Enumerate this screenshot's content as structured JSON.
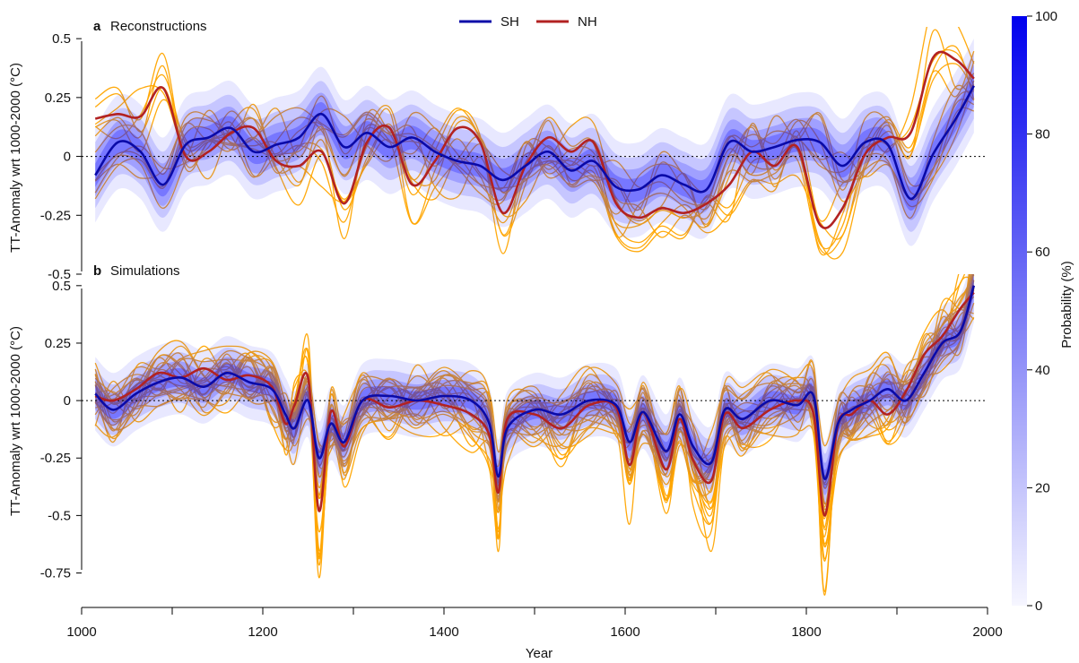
{
  "legend": {
    "entries": [
      {
        "label": "SH",
        "color": "#0a0aa8"
      },
      {
        "label": "NH",
        "color": "#b22222"
      }
    ],
    "placement": "top-center"
  },
  "colorbar": {
    "label": "Probability (%)",
    "ticks": [
      "100",
      "80",
      "60",
      "40",
      "20",
      "0"
    ],
    "color_high": "#0000ee",
    "color_low": "#f6f6ff"
  },
  "x_axis": {
    "label": "Year",
    "ticks": [
      "1000",
      "1200",
      "1400",
      "1600",
      "1800",
      "2000"
    ]
  },
  "colors": {
    "ensemble": "#ffa500",
    "sh": "#0a0aa8",
    "nh": "#b22222",
    "band": "#1a1aff"
  },
  "chart_data": [
    {
      "type": "line",
      "panel_letter": "a",
      "title": "Reconstructions",
      "ylabel": "TT-Anomaly wrt 1000-2000 (°C)",
      "xlim": [
        1000,
        2000
      ],
      "ylim": [
        -0.5,
        0.55
      ],
      "y_ticks": [
        "0.5",
        "0.25",
        "0",
        "-0.25",
        "-0.5"
      ],
      "reference_line": 0,
      "x": [
        1015,
        1040,
        1065,
        1090,
        1115,
        1140,
        1165,
        1190,
        1215,
        1240,
        1265,
        1290,
        1315,
        1340,
        1365,
        1390,
        1415,
        1440,
        1465,
        1490,
        1515,
        1540,
        1565,
        1590,
        1615,
        1640,
        1665,
        1690,
        1715,
        1740,
        1765,
        1790,
        1815,
        1840,
        1865,
        1890,
        1915,
        1940,
        1965,
        1985
      ],
      "series": [
        {
          "name": "SH",
          "values": [
            -0.08,
            0.06,
            0.02,
            -0.12,
            0.05,
            0.08,
            0.12,
            0.02,
            0.05,
            0.08,
            0.18,
            0.04,
            0.1,
            0.04,
            0.08,
            0.02,
            -0.02,
            -0.04,
            -0.1,
            -0.04,
            0.02,
            -0.06,
            -0.02,
            -0.13,
            -0.14,
            -0.08,
            -0.12,
            -0.14,
            0.06,
            0.02,
            0.04,
            0.07,
            0.06,
            -0.04,
            0.06,
            0.05,
            -0.18,
            0.01,
            0.16,
            0.3
          ]
        },
        {
          "name": "NH",
          "values": [
            0.16,
            0.18,
            0.17,
            0.29,
            0.0,
            0.02,
            0.1,
            0.12,
            -0.02,
            -0.04,
            0.02,
            -0.2,
            0.06,
            0.12,
            -0.12,
            -0.02,
            0.12,
            0.06,
            -0.24,
            -0.04,
            0.08,
            0.02,
            0.06,
            -0.2,
            -0.26,
            -0.22,
            -0.24,
            -0.2,
            -0.12,
            0.02,
            -0.04,
            0.04,
            -0.29,
            -0.22,
            0.01,
            0.08,
            0.1,
            0.42,
            0.41,
            0.33
          ]
        }
      ]
    },
    {
      "type": "line",
      "panel_letter": "b",
      "title": "Simulations",
      "ylabel": "TT-Anomaly wrt 1000-2000 (°C)",
      "xlim": [
        1000,
        2000
      ],
      "ylim": [
        -0.9,
        0.55
      ],
      "y_ticks": [
        "0.5",
        "0.25",
        "0",
        "-0.25",
        "-0.5",
        "-0.75"
      ],
      "reference_line": 0,
      "x": [
        1015,
        1035,
        1060,
        1085,
        1110,
        1135,
        1160,
        1185,
        1210,
        1225,
        1235,
        1250,
        1262,
        1275,
        1290,
        1310,
        1340,
        1370,
        1400,
        1430,
        1450,
        1460,
        1470,
        1500,
        1530,
        1560,
        1590,
        1605,
        1620,
        1645,
        1660,
        1675,
        1695,
        1710,
        1730,
        1760,
        1790,
        1808,
        1820,
        1835,
        1850,
        1870,
        1890,
        1910,
        1930,
        1950,
        1970,
        1985
      ],
      "series": [
        {
          "name": "SH",
          "values": [
            0.03,
            -0.04,
            0.03,
            0.08,
            0.1,
            0.06,
            0.12,
            0.08,
            0.05,
            -0.06,
            -0.12,
            0.0,
            -0.25,
            -0.1,
            -0.18,
            0.0,
            0.02,
            0.0,
            0.02,
            0.0,
            -0.1,
            -0.33,
            -0.12,
            -0.04,
            -0.06,
            0.0,
            -0.02,
            -0.18,
            -0.05,
            -0.22,
            -0.06,
            -0.2,
            -0.27,
            -0.04,
            -0.08,
            0.0,
            -0.02,
            0.02,
            -0.34,
            -0.1,
            -0.04,
            0.0,
            0.05,
            0.0,
            0.12,
            0.25,
            0.3,
            0.5
          ]
        },
        {
          "name": "NH",
          "values": [
            0.02,
            0.0,
            0.05,
            0.12,
            0.1,
            0.14,
            0.09,
            0.11,
            0.06,
            -0.1,
            -0.02,
            0.1,
            -0.48,
            -0.05,
            -0.2,
            0.0,
            -0.03,
            0.0,
            -0.02,
            -0.06,
            -0.15,
            -0.4,
            -0.08,
            -0.06,
            -0.12,
            -0.02,
            -0.03,
            -0.28,
            -0.05,
            -0.3,
            -0.08,
            -0.26,
            -0.35,
            -0.06,
            -0.12,
            -0.04,
            0.0,
            -0.06,
            -0.5,
            -0.1,
            -0.06,
            0.0,
            -0.06,
            0.04,
            0.2,
            0.28,
            0.4,
            0.47
          ]
        }
      ]
    }
  ]
}
